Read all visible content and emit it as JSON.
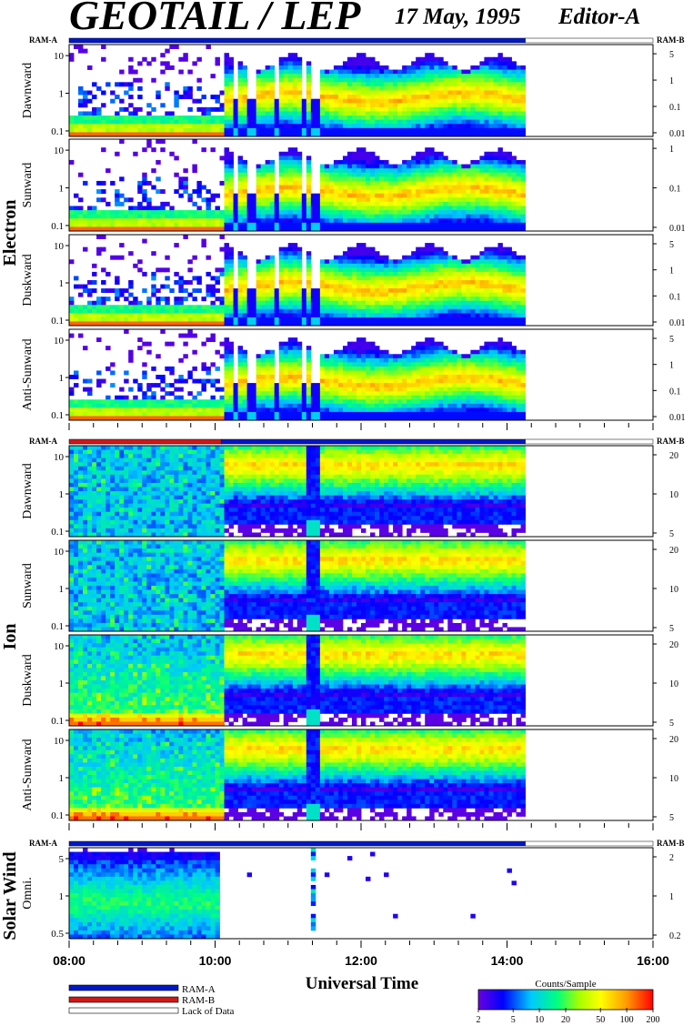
{
  "header": {
    "instrument": "GEOTAIL / LEP",
    "date": "17 May, 1995",
    "editor": "Editor-A"
  },
  "sections": [
    {
      "label": "Electron"
    },
    {
      "label": "Ion"
    },
    {
      "label": "Solar Wind"
    }
  ],
  "mode_bar_labels": {
    "left": "RAM-A",
    "right": "RAM-B"
  },
  "legend": {
    "items": [
      {
        "label": "RAM-A",
        "color": "#0018c8"
      },
      {
        "label": "RAM-B",
        "color": "#d01818"
      },
      {
        "label": "Lack of Data",
        "color": "#ffffff"
      }
    ]
  },
  "colorbar": {
    "title": "Counts/Sample",
    "ticks": [
      "2",
      "5",
      "10",
      "20",
      "50",
      "100",
      "200"
    ],
    "colors": [
      "#6a00e0",
      "#0000ff",
      "#00c8ff",
      "#00ff80",
      "#aaff00",
      "#ffff00",
      "#ff9900",
      "#ff0000"
    ]
  },
  "chart_data": {
    "type": "heatmap",
    "xlabel": "Universal Time",
    "x_ticks": [
      "08:00",
      "10:00",
      "12:00",
      "14:00",
      "16:00"
    ],
    "xlim": [
      "08:00",
      "16:00"
    ],
    "data_end": "14:15",
    "panels": [
      {
        "species": "Electron",
        "direction": "Dawnward",
        "left_ticks": [
          "10",
          "1",
          "0.1"
        ],
        "right_ticks": [
          "5",
          "1",
          "0.1",
          "0.01"
        ]
      },
      {
        "species": "Electron",
        "direction": "Sunward",
        "left_ticks": [
          "10",
          "1",
          "0.1"
        ],
        "right_ticks": [
          "1",
          "0.1",
          "0.01"
        ]
      },
      {
        "species": "Electron",
        "direction": "Duskward",
        "left_ticks": [
          "10",
          "1",
          "0.1"
        ],
        "right_ticks": [
          "5",
          "1",
          "0.1",
          "0.01"
        ]
      },
      {
        "species": "Electron",
        "direction": "Anti-Sunward",
        "left_ticks": [
          "10",
          "1",
          "0.1"
        ],
        "right_ticks": [
          "5",
          "1",
          "0.1",
          "0.01"
        ]
      },
      {
        "species": "Ion",
        "direction": "Dawnward",
        "left_ticks": [
          "10",
          "1",
          "0.1"
        ],
        "right_ticks": [
          "20",
          "10",
          "5"
        ]
      },
      {
        "species": "Ion",
        "direction": "Sunward",
        "left_ticks": [
          "10",
          "1",
          "0.1"
        ],
        "right_ticks": [
          "20",
          "10",
          "5"
        ]
      },
      {
        "species": "Ion",
        "direction": "Duskward",
        "left_ticks": [
          "10",
          "1",
          "0.1"
        ],
        "right_ticks": [
          "20",
          "10",
          "5"
        ]
      },
      {
        "species": "Ion",
        "direction": "Anti-Sunward",
        "left_ticks": [
          "10",
          "1",
          "0.1"
        ],
        "right_ticks": [
          "20",
          "10",
          "5"
        ]
      },
      {
        "species": "Solar Wind",
        "direction": "Omni.",
        "left_ticks": [
          "5",
          "1",
          "0.5"
        ],
        "right_ticks": [
          "2",
          "1",
          "0.2"
        ]
      }
    ],
    "mode_segments": [
      {
        "group": "Electron",
        "segments": [
          {
            "from": "08:00",
            "to": "14:15",
            "mode": "RAM-A"
          },
          {
            "from": "14:15",
            "to": "16:00",
            "mode": "Lack of Data"
          }
        ]
      },
      {
        "group": "Ion",
        "segments": [
          {
            "from": "08:00",
            "to": "10:05",
            "mode": "RAM-B"
          },
          {
            "from": "10:05",
            "to": "14:15",
            "mode": "RAM-A"
          },
          {
            "from": "14:15",
            "to": "16:00",
            "mode": "Lack of Data"
          }
        ]
      },
      {
        "group": "Solar Wind",
        "segments": [
          {
            "from": "08:00",
            "to": "14:15",
            "mode": "RAM-A"
          },
          {
            "from": "14:15",
            "to": "16:00",
            "mode": "Lack of Data"
          }
        ]
      }
    ]
  }
}
